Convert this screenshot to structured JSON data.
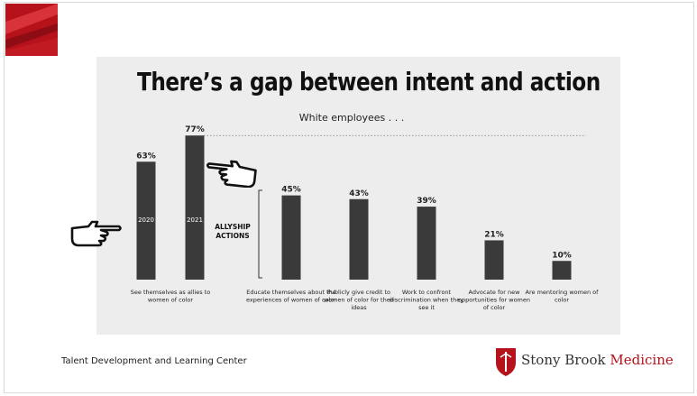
{
  "headline": "There’s a gap between intent and action",
  "subtitle": "White employees . . .",
  "allyship_label": [
    "ALLYSHIP",
    "ACTIONS"
  ],
  "footer_text": "Talent Development and Learning Center",
  "logo": {
    "name": "Stony Brook",
    "accent": "Medicine"
  },
  "colors": {
    "bar": "#3a3a3a",
    "brand_red": "#b5121b",
    "panel": "#ededed"
  },
  "chart_data": {
    "type": "bar",
    "title": "",
    "xlabel": "",
    "ylabel": "",
    "ylim": [
      0,
      80
    ],
    "reference_line": 77,
    "groups": [
      {
        "label": "See themselves as allies to women of color",
        "bars": [
          {
            "value": 63,
            "label": "63%",
            "year": "2020"
          },
          {
            "value": 77,
            "label": "77%",
            "year": "2021"
          }
        ]
      },
      {
        "label": "Educate themselves about the experiences of women of color",
        "bars": [
          {
            "value": 45,
            "label": "45%"
          }
        ]
      },
      {
        "label": "Publicly give credit to women of color for their ideas",
        "bars": [
          {
            "value": 43,
            "label": "43%"
          }
        ]
      },
      {
        "label": "Work to confront discrimination when they see it",
        "bars": [
          {
            "value": 39,
            "label": "39%"
          }
        ]
      },
      {
        "label": "Advocate for new opportunities for women of color",
        "bars": [
          {
            "value": 21,
            "label": "21%"
          }
        ]
      },
      {
        "label": "Are mentoring women of color",
        "bars": [
          {
            "value": 10,
            "label": "10%"
          }
        ]
      }
    ]
  }
}
